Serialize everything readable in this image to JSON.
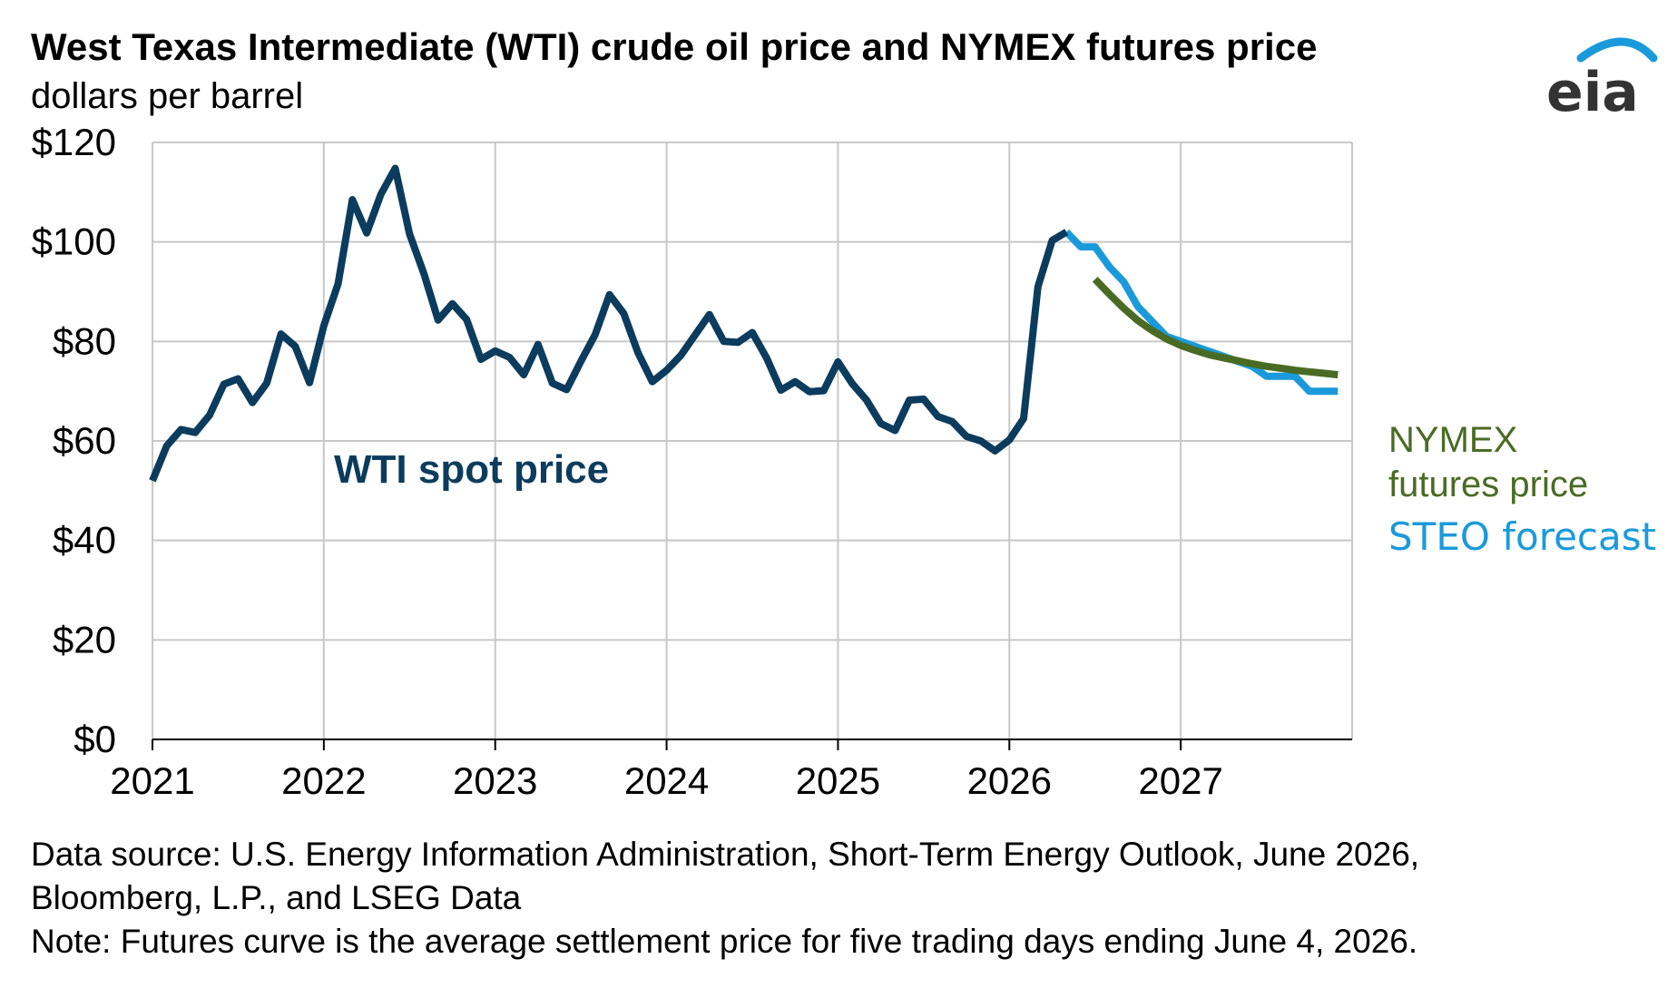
{
  "title": "West Texas Intermediate (WTI) crude oil price and NYMEX futures price",
  "subtitle": "dollars per barrel",
  "logo_text": "eia",
  "notes": [
    "Data source: U.S. Energy Information Administration, Short-Term Energy Outlook, June 2026,",
    "Bloomberg, L.P., and LSEG Data",
    "Note: Futures curve is the average settlement price for five trading days ending June 4, 2026."
  ],
  "colors": {
    "wti": "#0B3C5D",
    "steo": "#1A9ADB",
    "nymex": "#4A6B24",
    "grid": "#C8C8C8",
    "logo": "#333333",
    "logo_arc": "#1A9ADB"
  },
  "chart_data": {
    "type": "line",
    "ylim": [
      0,
      120
    ],
    "yticks": [
      0,
      20,
      40,
      60,
      80,
      100,
      120
    ],
    "ytick_labels": [
      "$0",
      "$20",
      "$40",
      "$60",
      "$80",
      "$100",
      "$120"
    ],
    "xlim": [
      "2021-01",
      "2027-12"
    ],
    "xtick_labels": [
      "2021",
      "2022",
      "2023",
      "2024",
      "2025",
      "2026",
      "2027"
    ],
    "grid": true,
    "series": [
      {
        "name": "WTI spot price",
        "color": "#0B3C5D",
        "points": [
          [
            "2021-01",
            52.0
          ],
          [
            "2021-02",
            59.0
          ],
          [
            "2021-03",
            62.3
          ],
          [
            "2021-04",
            61.7
          ],
          [
            "2021-05",
            65.2
          ],
          [
            "2021-06",
            71.4
          ],
          [
            "2021-07",
            72.5
          ],
          [
            "2021-08",
            67.7
          ],
          [
            "2021-09",
            71.6
          ],
          [
            "2021-10",
            81.5
          ],
          [
            "2021-11",
            79.0
          ],
          [
            "2021-12",
            71.7
          ],
          [
            "2022-01",
            83.2
          ],
          [
            "2022-02",
            91.6
          ],
          [
            "2022-03",
            108.5
          ],
          [
            "2022-04",
            101.8
          ],
          [
            "2022-05",
            109.6
          ],
          [
            "2022-06",
            114.8
          ],
          [
            "2022-07",
            101.6
          ],
          [
            "2022-08",
            93.7
          ],
          [
            "2022-09",
            84.3
          ],
          [
            "2022-10",
            87.6
          ],
          [
            "2022-11",
            84.4
          ],
          [
            "2022-12",
            76.4
          ],
          [
            "2023-01",
            78.1
          ],
          [
            "2023-02",
            76.8
          ],
          [
            "2023-03",
            73.3
          ],
          [
            "2023-04",
            79.4
          ],
          [
            "2023-05",
            71.6
          ],
          [
            "2023-06",
            70.3
          ],
          [
            "2023-07",
            76.0
          ],
          [
            "2023-08",
            81.4
          ],
          [
            "2023-09",
            89.4
          ],
          [
            "2023-10",
            85.6
          ],
          [
            "2023-11",
            77.7
          ],
          [
            "2023-12",
            71.9
          ],
          [
            "2024-01",
            74.2
          ],
          [
            "2024-02",
            77.2
          ],
          [
            "2024-03",
            81.3
          ],
          [
            "2024-04",
            85.4
          ],
          [
            "2024-05",
            80.0
          ],
          [
            "2024-06",
            79.8
          ],
          [
            "2024-07",
            81.8
          ],
          [
            "2024-08",
            76.7
          ],
          [
            "2024-09",
            70.2
          ],
          [
            "2024-10",
            71.9
          ],
          [
            "2024-11",
            69.9
          ],
          [
            "2024-12",
            70.1
          ],
          [
            "2025-01",
            75.9
          ],
          [
            "2025-02",
            71.5
          ],
          [
            "2025-03",
            68.2
          ],
          [
            "2025-04",
            63.5
          ],
          [
            "2025-05",
            62.1
          ],
          [
            "2025-06",
            68.2
          ],
          [
            "2025-07",
            68.4
          ],
          [
            "2025-08",
            64.9
          ],
          [
            "2025-09",
            63.9
          ],
          [
            "2025-10",
            60.9
          ],
          [
            "2025-11",
            60.0
          ],
          [
            "2025-12",
            58.0
          ],
          [
            "2026-01",
            60.2
          ],
          [
            "2026-02",
            64.5
          ],
          [
            "2026-03",
            91.0
          ],
          [
            "2026-04",
            100.3
          ],
          [
            "2026-05",
            102.0
          ]
        ]
      },
      {
        "name": "STEO forecast",
        "color": "#1A9ADB",
        "points": [
          [
            "2026-05",
            102.0
          ],
          [
            "2026-06",
            99.0
          ],
          [
            "2026-07",
            99.0
          ],
          [
            "2026-08",
            95.0
          ],
          [
            "2026-09",
            92.0
          ],
          [
            "2026-10",
            87.0
          ],
          [
            "2026-11",
            84.0
          ],
          [
            "2026-12",
            81.0
          ],
          [
            "2027-01",
            80.0
          ],
          [
            "2027-02",
            79.0
          ],
          [
            "2027-03",
            78.0
          ],
          [
            "2027-04",
            77.0
          ],
          [
            "2027-05",
            76.0
          ],
          [
            "2027-06",
            75.0
          ],
          [
            "2027-07",
            73.0
          ],
          [
            "2027-08",
            73.0
          ],
          [
            "2027-09",
            73.0
          ],
          [
            "2027-10",
            70.0
          ],
          [
            "2027-11",
            70.0
          ],
          [
            "2027-12",
            70.0
          ]
        ]
      },
      {
        "name": "NYMEX futures price",
        "color": "#4A6B24",
        "points": [
          [
            "2026-07",
            92.5
          ],
          [
            "2026-08",
            89.5
          ],
          [
            "2026-09",
            86.7
          ],
          [
            "2026-10",
            84.2
          ],
          [
            "2026-11",
            82.2
          ],
          [
            "2026-12",
            80.5
          ],
          [
            "2027-01",
            79.2
          ],
          [
            "2027-02",
            78.2
          ],
          [
            "2027-03",
            77.3
          ],
          [
            "2027-04",
            76.7
          ],
          [
            "2027-05",
            76.1
          ],
          [
            "2027-06",
            75.5
          ],
          [
            "2027-07",
            75.0
          ],
          [
            "2027-08",
            74.6
          ],
          [
            "2027-09",
            74.2
          ],
          [
            "2027-10",
            73.9
          ],
          [
            "2027-11",
            73.6
          ],
          [
            "2027-12",
            73.3
          ]
        ]
      }
    ],
    "annotations": [
      {
        "text": "WTI spot price",
        "series": "WTI spot price"
      },
      {
        "lines": [
          "NYMEX",
          "futures price"
        ],
        "series": "NYMEX futures price"
      },
      {
        "text": "STEO forecast",
        "series": "STEO forecast"
      }
    ]
  }
}
